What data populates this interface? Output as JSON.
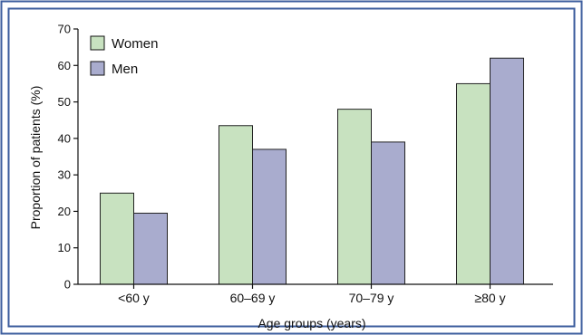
{
  "chart_data": {
    "type": "bar",
    "categories": [
      "<60 y",
      "60–69 y",
      "70–79 y",
      "≥80 y"
    ],
    "series": [
      {
        "name": "Women",
        "values": [
          25,
          43.5,
          48,
          55
        ],
        "color": "#c8e2c0"
      },
      {
        "name": "Men",
        "values": [
          19.5,
          37,
          39,
          62
        ],
        "color": "#a9acce"
      }
    ],
    "xlabel": "Age groups (years)",
    "ylabel": "Proportion of patients (%)",
    "ylim": [
      0,
      70
    ],
    "yticks": [
      0,
      10,
      20,
      30,
      40,
      50,
      60,
      70
    ],
    "legend": "top-left",
    "grid": false
  },
  "colors": {
    "border": "#3d5e9e",
    "axis": "#111111"
  }
}
